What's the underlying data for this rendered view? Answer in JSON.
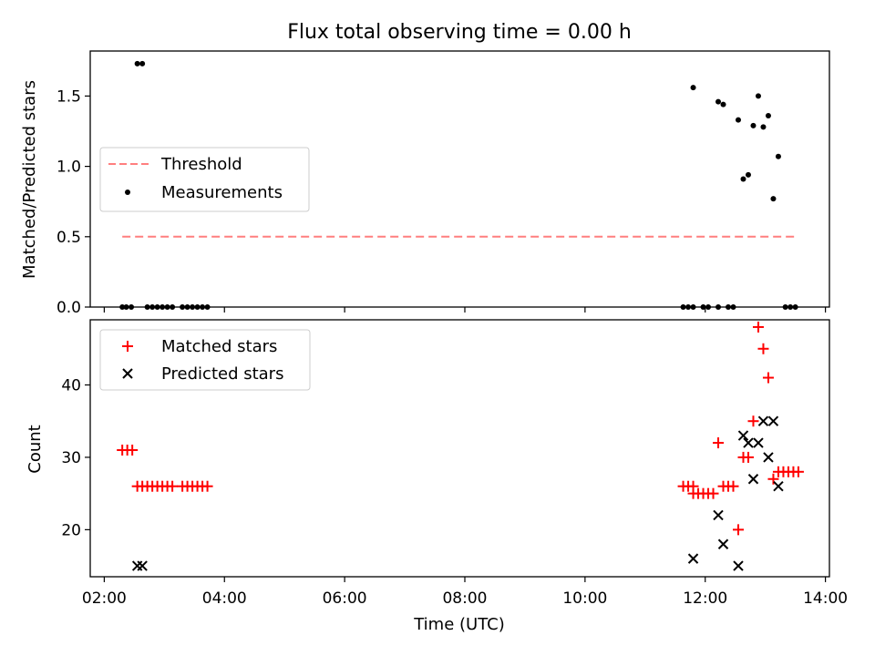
{
  "figure": {
    "title": "Flux total observing time = 0.00 h",
    "xlabel": "Time (UTC)"
  },
  "chart_data": [
    {
      "type": "scatter",
      "panel": "top",
      "ylabel": "Matched/Predicted stars",
      "xlim": [
        "01:46",
        "14:04"
      ],
      "ylim": [
        0,
        1.82
      ],
      "yticks": [
        0.0,
        0.5,
        1.0,
        1.5
      ],
      "ytick_labels": [
        "0.0",
        "0.5",
        "1.0",
        "1.5"
      ],
      "xticks": [
        "02:00",
        "04:00",
        "06:00",
        "08:00",
        "10:00",
        "12:00",
        "14:00"
      ],
      "show_xtick_labels": false,
      "legend": {
        "placement": "center-left"
      },
      "series": [
        {
          "name": "Threshold",
          "kind": "dashed-line",
          "color": "#ff7f7f",
          "x": [
            "02:18",
            "13:30"
          ],
          "y": [
            0.5,
            0.5
          ]
        },
        {
          "name": "Measurements",
          "kind": "dot",
          "color": "#000000",
          "points": [
            [
              "02:18",
              0
            ],
            [
              "02:22",
              0
            ],
            [
              "02:27",
              0
            ],
            [
              "02:33",
              1.73
            ],
            [
              "02:38",
              1.73
            ],
            [
              "02:43",
              0
            ],
            [
              "02:48",
              0
            ],
            [
              "02:53",
              0
            ],
            [
              "02:58",
              0
            ],
            [
              "03:03",
              0
            ],
            [
              "03:08",
              0
            ],
            [
              "03:18",
              0
            ],
            [
              "03:23",
              0
            ],
            [
              "03:28",
              0
            ],
            [
              "03:33",
              0
            ],
            [
              "03:38",
              0
            ],
            [
              "03:43",
              0
            ],
            [
              "11:38",
              0
            ],
            [
              "11:43",
              0
            ],
            [
              "11:48",
              0
            ],
            [
              "11:48",
              1.56
            ],
            [
              "11:58",
              0
            ],
            [
              "12:03",
              0
            ],
            [
              "12:13",
              0
            ],
            [
              "12:13",
              1.46
            ],
            [
              "12:18",
              1.44
            ],
            [
              "12:23",
              0
            ],
            [
              "12:28",
              0
            ],
            [
              "12:33",
              1.33
            ],
            [
              "12:38",
              0.91
            ],
            [
              "12:43",
              0.94
            ],
            [
              "12:48",
              1.29
            ],
            [
              "12:53",
              1.5
            ],
            [
              "12:58",
              1.28
            ],
            [
              "13:03",
              1.36
            ],
            [
              "13:08",
              0.77
            ],
            [
              "13:13",
              1.07
            ],
            [
              "13:20",
              0
            ],
            [
              "13:25",
              0
            ],
            [
              "13:30",
              0
            ]
          ]
        }
      ]
    },
    {
      "type": "scatter",
      "panel": "bottom",
      "ylabel": "Count",
      "xlabel": "Time (UTC)",
      "xlim": [
        "01:46",
        "14:04"
      ],
      "ylim": [
        13.5,
        49
      ],
      "yticks": [
        20,
        30,
        40
      ],
      "ytick_labels": [
        "20",
        "30",
        "40"
      ],
      "xticks": [
        "02:00",
        "04:00",
        "06:00",
        "08:00",
        "10:00",
        "12:00",
        "14:00"
      ],
      "xtick_labels": [
        "02:00",
        "04:00",
        "06:00",
        "08:00",
        "10:00",
        "12:00",
        "14:00"
      ],
      "legend": {
        "placement": "top-left"
      },
      "series": [
        {
          "name": "Matched stars",
          "marker": "+",
          "color": "#ff0000",
          "points": [
            [
              "02:18",
              31
            ],
            [
              "02:23",
              31
            ],
            [
              "02:28",
              31
            ],
            [
              "02:33",
              26
            ],
            [
              "02:38",
              26
            ],
            [
              "02:43",
              26
            ],
            [
              "02:48",
              26
            ],
            [
              "02:53",
              26
            ],
            [
              "02:58",
              26
            ],
            [
              "03:03",
              26
            ],
            [
              "03:08",
              26
            ],
            [
              "03:18",
              26
            ],
            [
              "03:23",
              26
            ],
            [
              "03:28",
              26
            ],
            [
              "03:33",
              26
            ],
            [
              "03:38",
              26
            ],
            [
              "03:43",
              26
            ],
            [
              "11:38",
              26
            ],
            [
              "11:43",
              26
            ],
            [
              "11:48",
              26
            ],
            [
              "11:48",
              25
            ],
            [
              "11:53",
              25
            ],
            [
              "11:58",
              25
            ],
            [
              "12:03",
              25
            ],
            [
              "12:08",
              25
            ],
            [
              "12:13",
              32
            ],
            [
              "12:18",
              26
            ],
            [
              "12:23",
              26
            ],
            [
              "12:28",
              26
            ],
            [
              "12:33",
              20
            ],
            [
              "12:38",
              30
            ],
            [
              "12:43",
              30
            ],
            [
              "12:48",
              35
            ],
            [
              "12:53",
              48
            ],
            [
              "12:58",
              45
            ],
            [
              "13:03",
              41
            ],
            [
              "13:08",
              27
            ],
            [
              "13:13",
              28
            ],
            [
              "13:18",
              28
            ],
            [
              "13:23",
              28
            ],
            [
              "13:28",
              28
            ],
            [
              "13:33",
              28
            ]
          ]
        },
        {
          "name": "Predicted stars",
          "marker": "x",
          "color": "#000000",
          "points": [
            [
              "02:33",
              15
            ],
            [
              "02:38",
              15
            ],
            [
              "11:48",
              16
            ],
            [
              "12:13",
              22
            ],
            [
              "12:18",
              18
            ],
            [
              "12:33",
              15
            ],
            [
              "12:38",
              33
            ],
            [
              "12:43",
              32
            ],
            [
              "12:48",
              27
            ],
            [
              "12:53",
              32
            ],
            [
              "12:58",
              35
            ],
            [
              "13:03",
              30
            ],
            [
              "13:08",
              35
            ],
            [
              "13:13",
              26
            ]
          ]
        }
      ]
    }
  ]
}
